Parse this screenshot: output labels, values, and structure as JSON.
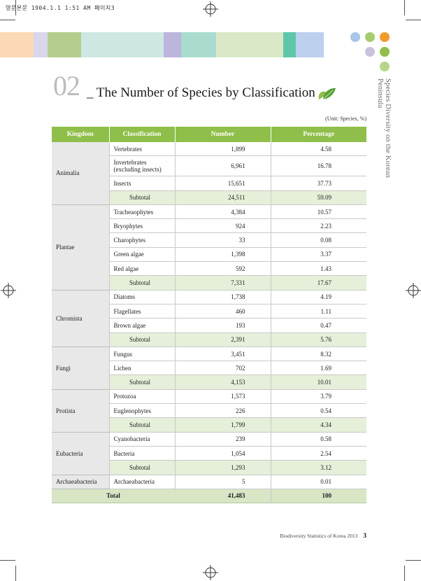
{
  "printer_line": "영문본문  1904.1.1 1:51 AM  페이지3",
  "header": {
    "number": "02",
    "title": "_ The Number of Species by Classification",
    "side_title": "Species Diversity on the Korean Peninsula",
    "colors": {
      "bars": [
        "#fbd9b5",
        "#d8d7ec",
        "#b5cd8d",
        "#cde8e3",
        "#bcb5dc",
        "#a9dccf",
        "#dae8c7",
        "#5fc7a9",
        "#bcd0ee"
      ],
      "dots": [
        "#a9c5e8",
        "#a5cc6b",
        "#f29a2e",
        "#c9c2de",
        "#8fbf4a",
        "#b5d68a"
      ]
    }
  },
  "table": {
    "unit": "(Unit: Species, %)",
    "headers": {
      "kingdom": "Kingdom",
      "classification": "Classification",
      "number": "Number",
      "percentage": "Percentage"
    },
    "groups": [
      {
        "kingdom": "Animalia",
        "rows": [
          {
            "classification": "Vertebrates",
            "number": "1,899",
            "percentage": "4.58"
          },
          {
            "classification": "Invertebrates\n(excluding insects)",
            "number": "6,961",
            "percentage": "16.78"
          },
          {
            "classification": "Insects",
            "number": "15,651",
            "percentage": "37.73"
          }
        ],
        "subtotal": {
          "label": "Subtotal",
          "number": "24,511",
          "percentage": "59.09"
        }
      },
      {
        "kingdom": "Plantae",
        "rows": [
          {
            "classification": "Tracheaophytes",
            "number": "4,384",
            "percentage": "10.57"
          },
          {
            "classification": "Bryophytes",
            "number": "924",
            "percentage": "2.23"
          },
          {
            "classification": "Charophytes",
            "number": "33",
            "percentage": "0.08"
          },
          {
            "classification": "Green algae",
            "number": "1,398",
            "percentage": "3.37"
          },
          {
            "classification": "Red algae",
            "number": "592",
            "percentage": "1.43"
          }
        ],
        "subtotal": {
          "label": "Subtotal",
          "number": "7,331",
          "percentage": "17.67"
        }
      },
      {
        "kingdom": "Chromista",
        "rows": [
          {
            "classification": "Diatoms",
            "number": "1,738",
            "percentage": "4.19"
          },
          {
            "classification": "Flagellates",
            "number": "460",
            "percentage": "1.11"
          },
          {
            "classification": "Brown algae",
            "number": "193",
            "percentage": "0.47"
          }
        ],
        "subtotal": {
          "label": "Subtotal",
          "number": "2,391",
          "percentage": "5.76"
        }
      },
      {
        "kingdom": "Fungi",
        "rows": [
          {
            "classification": "Fungus",
            "number": "3,451",
            "percentage": "8.32"
          },
          {
            "classification": "Lichen",
            "number": "702",
            "percentage": "1.69"
          }
        ],
        "subtotal": {
          "label": "Subtotal",
          "number": "4,153",
          "percentage": "10.01"
        }
      },
      {
        "kingdom": "Protista",
        "rows": [
          {
            "classification": "Protozoa",
            "number": "1,573",
            "percentage": "3.79"
          },
          {
            "classification": "Euglenophytes",
            "number": "226",
            "percentage": "0.54"
          }
        ],
        "subtotal": {
          "label": "Subtotal",
          "number": "1,799",
          "percentage": "4.34"
        }
      },
      {
        "kingdom": "Eubacteria",
        "rows": [
          {
            "classification": "Cyanobacteria",
            "number": "239",
            "percentage": "0.58"
          },
          {
            "classification": "Bacteria",
            "number": "1,054",
            "percentage": "2.54"
          }
        ],
        "subtotal": {
          "label": "Subtotal",
          "number": "1,293",
          "percentage": "3.12"
        }
      },
      {
        "kingdom": "Archaeabacteria",
        "rows": [
          {
            "classification": "Archaeabacteria",
            "number": "5",
            "percentage": "0.01"
          }
        ]
      }
    ],
    "total": {
      "label": "Total",
      "number": "41,483",
      "percentage": "100"
    }
  },
  "footer": {
    "publication": "Biodiversity Statistics of Korea 2013",
    "page": "3"
  }
}
